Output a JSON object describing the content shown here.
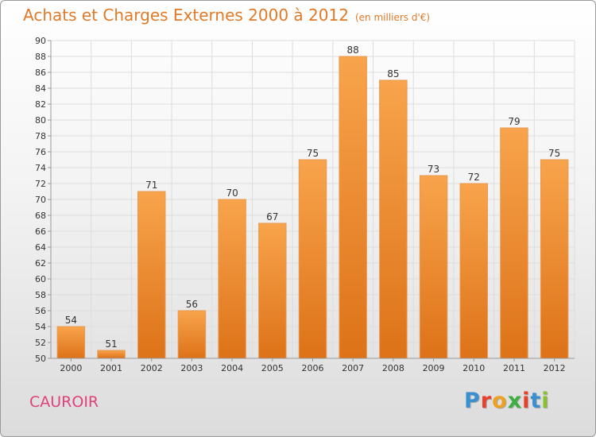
{
  "header": {
    "title": "Achats et Charges Externes 2000 à 2012",
    "subtitle": "(en milliers d'€)"
  },
  "footer": {
    "commune": "CAUROIR",
    "logo_letters": [
      "P",
      "r",
      "o",
      "x",
      "i",
      "t",
      "i"
    ],
    "logo_colors": [
      "#3a8fd0",
      "#e8402a",
      "#f0a020",
      "#3ab040",
      "#e8402a",
      "#3a8fd0",
      "#8ac030"
    ]
  },
  "colors": {
    "bar_light": "#f8a44c",
    "bar_dark": "#dd7218",
    "grid": "#dddddd",
    "axis": "#999999"
  },
  "chart_data": {
    "type": "bar",
    "title": "Achats et Charges Externes 2000 à 2012",
    "subtitle": "(en milliers d'€)",
    "categories": [
      "2000",
      "2001",
      "2002",
      "2003",
      "2004",
      "2005",
      "2006",
      "2007",
      "2008",
      "2009",
      "2010",
      "2011",
      "2012"
    ],
    "values": [
      54,
      51,
      71,
      56,
      70,
      67,
      75,
      88,
      85,
      73,
      72,
      79,
      75
    ],
    "ylim": [
      50,
      90
    ],
    "yticks": [
      50,
      52,
      54,
      56,
      58,
      60,
      62,
      64,
      66,
      68,
      70,
      72,
      74,
      76,
      78,
      80,
      82,
      84,
      86,
      88,
      90
    ],
    "grid": true
  }
}
